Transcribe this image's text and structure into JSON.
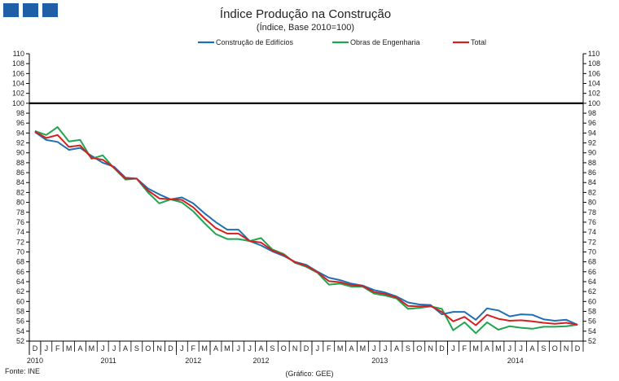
{
  "logo": {
    "label": "GEE logo"
  },
  "chart_data": {
    "type": "line",
    "title": "Índice Produção na Construção",
    "subtitle": "(Índice, Base 2010=100)",
    "source": "Fonte: INE",
    "credit": "(Gráfico: GEE)",
    "ylim": [
      52,
      110
    ],
    "ytick_step": 2,
    "grid": false,
    "legend_position": "top",
    "reference_line": {
      "value": 100,
      "color": "#000000"
    },
    "month_labels": [
      "D",
      "J",
      "F",
      "M",
      "A",
      "M",
      "J",
      "J",
      "A",
      "S",
      "O",
      "N",
      "D",
      "J",
      "F",
      "M",
      "A",
      "M",
      "J",
      "J",
      "A",
      "S",
      "O",
      "N",
      "D",
      "J",
      "F",
      "M",
      "A",
      "M",
      "J",
      "J",
      "A",
      "S",
      "O",
      "N",
      "D",
      "J",
      "F",
      "M",
      "A",
      "M",
      "J",
      "J",
      "A",
      "S",
      "O",
      "N",
      "D"
    ],
    "year_labels": [
      {
        "label": "2010",
        "start": 0,
        "end": 0
      },
      {
        "label": "2011",
        "start": 1,
        "end": 12
      },
      {
        "label": "2012",
        "start": 13,
        "end": 15
      },
      {
        "label": "2012",
        "start": 16,
        "end": 24
      },
      {
        "label": "2013",
        "start": 25,
        "end": 36
      },
      {
        "label": "2014",
        "start": 37,
        "end": 48
      }
    ],
    "year_separators_after": [
      0,
      12,
      15,
      24,
      36
    ],
    "series": [
      {
        "name": "Construção de Edifícios",
        "color": "#1F6FB5",
        "values": [
          94.2,
          92.6,
          92.2,
          90.6,
          91.0,
          89.4,
          88.0,
          87.2,
          85.0,
          84.8,
          82.8,
          81.6,
          80.6,
          81.0,
          79.8,
          77.8,
          76.0,
          74.5,
          74.5,
          72.2,
          71.3,
          70.1,
          69.2,
          68.0,
          67.4,
          66.0,
          64.8,
          64.3,
          63.6,
          63.2,
          62.3,
          61.8,
          61.0,
          59.8,
          59.4,
          59.3,
          57.4,
          57.9,
          57.9,
          56.3,
          58.6,
          58.2,
          57.0,
          57.4,
          57.3,
          56.4,
          56.1,
          56.3,
          55.3
        ]
      },
      {
        "name": "Obras de Engenharia",
        "color": "#1EA650",
        "values": [
          94.4,
          93.6,
          95.2,
          92.3,
          92.6,
          88.8,
          89.5,
          86.9,
          84.6,
          84.8,
          82.0,
          79.8,
          80.6,
          80.0,
          78.2,
          75.8,
          73.6,
          72.6,
          72.6,
          72.2,
          72.8,
          70.5,
          69.6,
          67.8,
          67.0,
          65.8,
          63.4,
          63.6,
          63.0,
          63.0,
          61.6,
          61.2,
          60.6,
          58.5,
          58.7,
          59.0,
          58.5,
          54.2,
          55.8,
          53.6,
          55.8,
          54.3,
          55.0,
          54.7,
          54.5,
          54.9,
          54.9,
          55.0,
          55.3
        ]
      },
      {
        "name": "Total",
        "color": "#D42020",
        "values": [
          94.3,
          93.0,
          93.6,
          91.2,
          91.5,
          89.0,
          88.6,
          87.0,
          84.8,
          84.8,
          82.4,
          80.8,
          80.6,
          80.5,
          79.0,
          76.8,
          74.8,
          73.7,
          73.7,
          72.2,
          71.9,
          70.3,
          69.4,
          67.9,
          67.2,
          65.9,
          64.1,
          63.9,
          63.3,
          63.1,
          61.9,
          61.5,
          60.8,
          59.1,
          59.0,
          59.1,
          57.9,
          56.0,
          56.9,
          55.2,
          57.3,
          56.5,
          56.1,
          56.2,
          56.0,
          55.7,
          55.5,
          55.7,
          55.3
        ]
      }
    ]
  }
}
